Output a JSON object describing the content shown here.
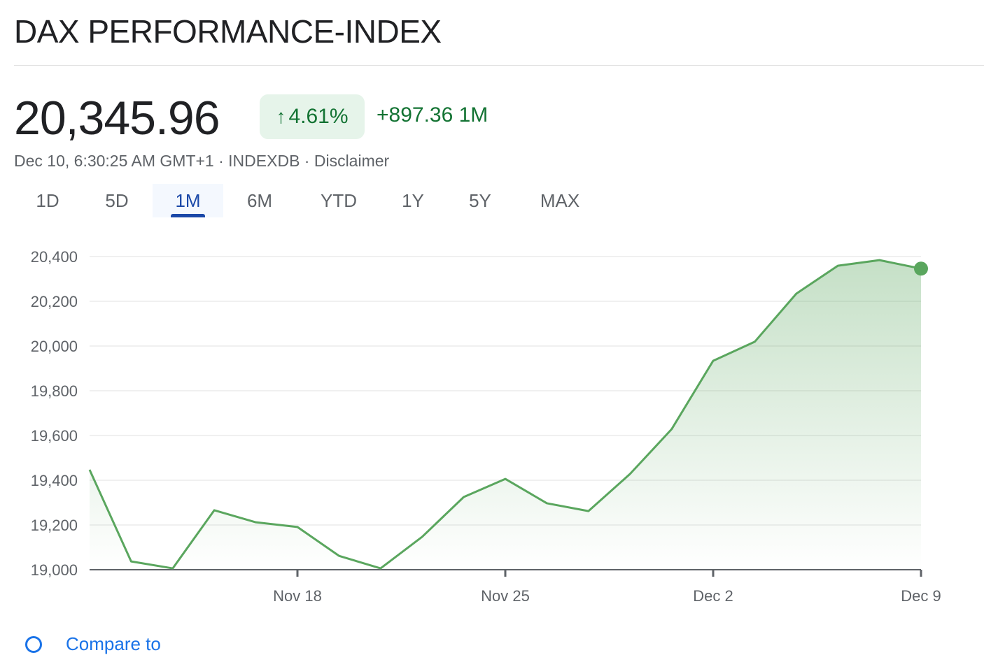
{
  "header": {
    "title": "DAX PERFORMANCE-INDEX"
  },
  "quote": {
    "price": "20,345.96",
    "change_percent": "4.61%",
    "change_direction_icon": "arrow-up-icon",
    "change_abs": "+897.36 1M",
    "meta": "Dec 10, 6:30:25 AM GMT+1 · INDEXDB · Disclaimer"
  },
  "tabs": [
    {
      "label": "1D",
      "active": false
    },
    {
      "label": "5D",
      "active": false
    },
    {
      "label": "1M",
      "active": true
    },
    {
      "label": "6M",
      "active": false
    },
    {
      "label": "YTD",
      "active": false
    },
    {
      "label": "1Y",
      "active": false
    },
    {
      "label": "5Y",
      "active": false
    },
    {
      "label": "MAX",
      "active": false
    }
  ],
  "compare": {
    "label": "Compare to"
  },
  "colors": {
    "line": "#5aa65e",
    "accent": "#137333",
    "active_tab": "#1a48a8"
  },
  "chart_data": {
    "type": "area",
    "title": "DAX PERFORMANCE-INDEX 1M",
    "x": [
      "Nov 11",
      "Nov 12",
      "Nov 13",
      "Nov 14",
      "Nov 15",
      "Nov 18",
      "Nov 19",
      "Nov 20",
      "Nov 21",
      "Nov 22",
      "Nov 25",
      "Nov 26",
      "Nov 27",
      "Nov 28",
      "Nov 29",
      "Dec 2",
      "Dec 3",
      "Dec 4",
      "Dec 5",
      "Dec 6",
      "Dec 9"
    ],
    "values": [
      19447,
      19037,
      19006,
      19266,
      19212,
      19191,
      19062,
      19006,
      19147,
      19325,
      19406,
      19297,
      19262,
      19428,
      19628,
      19934,
      20019,
      20234,
      20359,
      20384,
      20346
    ],
    "ylim": [
      19000,
      20400
    ],
    "yticks": [
      19000,
      19200,
      19400,
      19600,
      19800,
      20000,
      20200,
      20400
    ],
    "ytick_labels": [
      "19,000",
      "19,200",
      "19,400",
      "19,600",
      "19,800",
      "20,000",
      "20,200",
      "20,400"
    ],
    "xticks": [
      {
        "index": 5,
        "label": "Nov 18"
      },
      {
        "index": 10,
        "label": "Nov 25"
      },
      {
        "index": 15,
        "label": "Dec 2"
      },
      {
        "index": 20,
        "label": "Dec 9"
      }
    ],
    "grid": true
  }
}
